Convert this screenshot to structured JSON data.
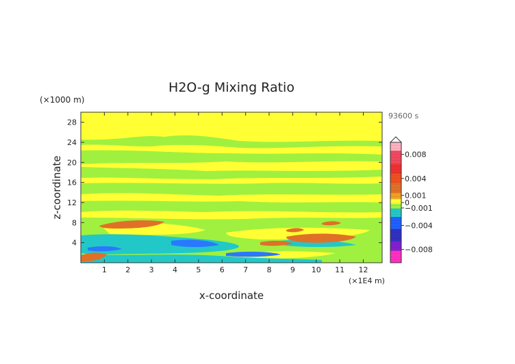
{
  "chart_data": {
    "type": "heatmap",
    "title": "H2O-g Mixing Ratio",
    "time_label": "93600 s",
    "xlabel": "x-coordinate",
    "ylabel": "z-coordinate",
    "x_unit": "(×1E4 m)",
    "y_unit": "(×1000 m)",
    "xlim": [
      0,
      12.8
    ],
    "ylim": [
      0,
      30
    ],
    "x_ticks": [
      1,
      2,
      3,
      4,
      5,
      6,
      7,
      8,
      9,
      10,
      11,
      12
    ],
    "y_ticks": [
      4,
      8,
      12,
      16,
      20,
      24,
      28
    ],
    "colorbar": {
      "range": [
        -0.01,
        0.01
      ],
      "labels": [
        {
          "value": 0.008,
          "text": "0.008"
        },
        {
          "value": 0.004,
          "text": "0.004"
        },
        {
          "value": 0.001,
          "text": "0.001"
        },
        {
          "value": 0.0,
          "text": "0"
        },
        {
          "value": -0.001,
          "text": "−0.001"
        },
        {
          "value": -0.004,
          "text": "−0.004"
        },
        {
          "value": -0.008,
          "text": "−0.008"
        }
      ],
      "colors": {
        "pos_high": "#ffb0c0",
        "pos_mid": "#ee3030",
        "pos_low": "#e07028",
        "near_pos": "#f0a020",
        "zero": "#ffff33",
        "near_neg": "#a0f040",
        "neg_low": "#22c8c8",
        "neg_mid": "#2060ff",
        "neg_high": "#8020d0",
        "neg_max": "#ff30c0"
      }
    },
    "regions": [
      {
        "color": "#ffff33",
        "cover": "background (near-zero, slightly positive)"
      },
      {
        "color": "#a0f040",
        "cover": "horizontal bands at ~1.5, 7, 10, 14, 17, 21, 24 km"
      },
      {
        "color": "#22c8c8",
        "cover": "lower layer 0-5 km, left and middle"
      },
      {
        "color": "#2a78ff",
        "cover": "patches near 2-3 km"
      },
      {
        "color": "#e07028",
        "cover": "patches near 7 km (x≈1-3), 3-5 km (x≈7-12), surface at x≈0.5"
      }
    ]
  }
}
